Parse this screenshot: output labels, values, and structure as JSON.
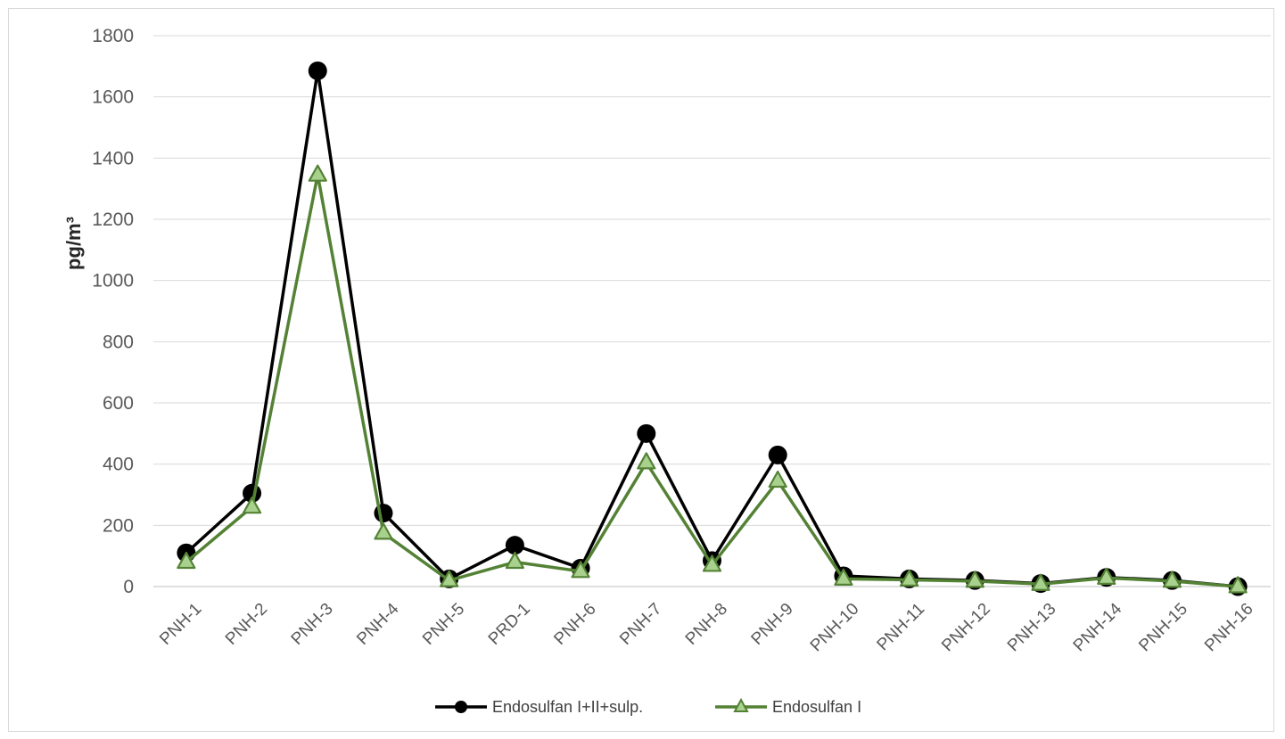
{
  "chart_data": {
    "type": "line",
    "title": "",
    "xlabel": "",
    "ylabel": "pg/m³",
    "ylim": [
      0,
      1800
    ],
    "yticks": [
      0,
      200,
      400,
      600,
      800,
      1000,
      1200,
      1400,
      1600,
      1800
    ],
    "grid": true,
    "legend_position": "bottom",
    "categories": [
      "PNH-1",
      "PNH-2",
      "PNH-3",
      "PNH-4",
      "PNH-5",
      "PRD-1",
      "PNH-6",
      "PNH-7",
      "PNH-8",
      "PNH-9",
      "PNH-10",
      "PNH-11",
      "PNH-12",
      "PNH-13",
      "PNH-14",
      "PNH-15",
      "PNH-16"
    ],
    "series": [
      {
        "name": "Endosulfan I+II+sulp.",
        "color": "#000000",
        "marker": "circle",
        "values": [
          110,
          305,
          1685,
          240,
          25,
          135,
          60,
          500,
          85,
          430,
          35,
          25,
          20,
          10,
          30,
          20,
          0
        ]
      },
      {
        "name": "Endosulfan I",
        "color": "#548235",
        "marker_fill": "#a9d18e",
        "marker": "triangle",
        "values": [
          80,
          260,
          1345,
          175,
          20,
          80,
          50,
          405,
          70,
          345,
          25,
          22,
          18,
          8,
          28,
          18,
          0
        ]
      }
    ]
  }
}
